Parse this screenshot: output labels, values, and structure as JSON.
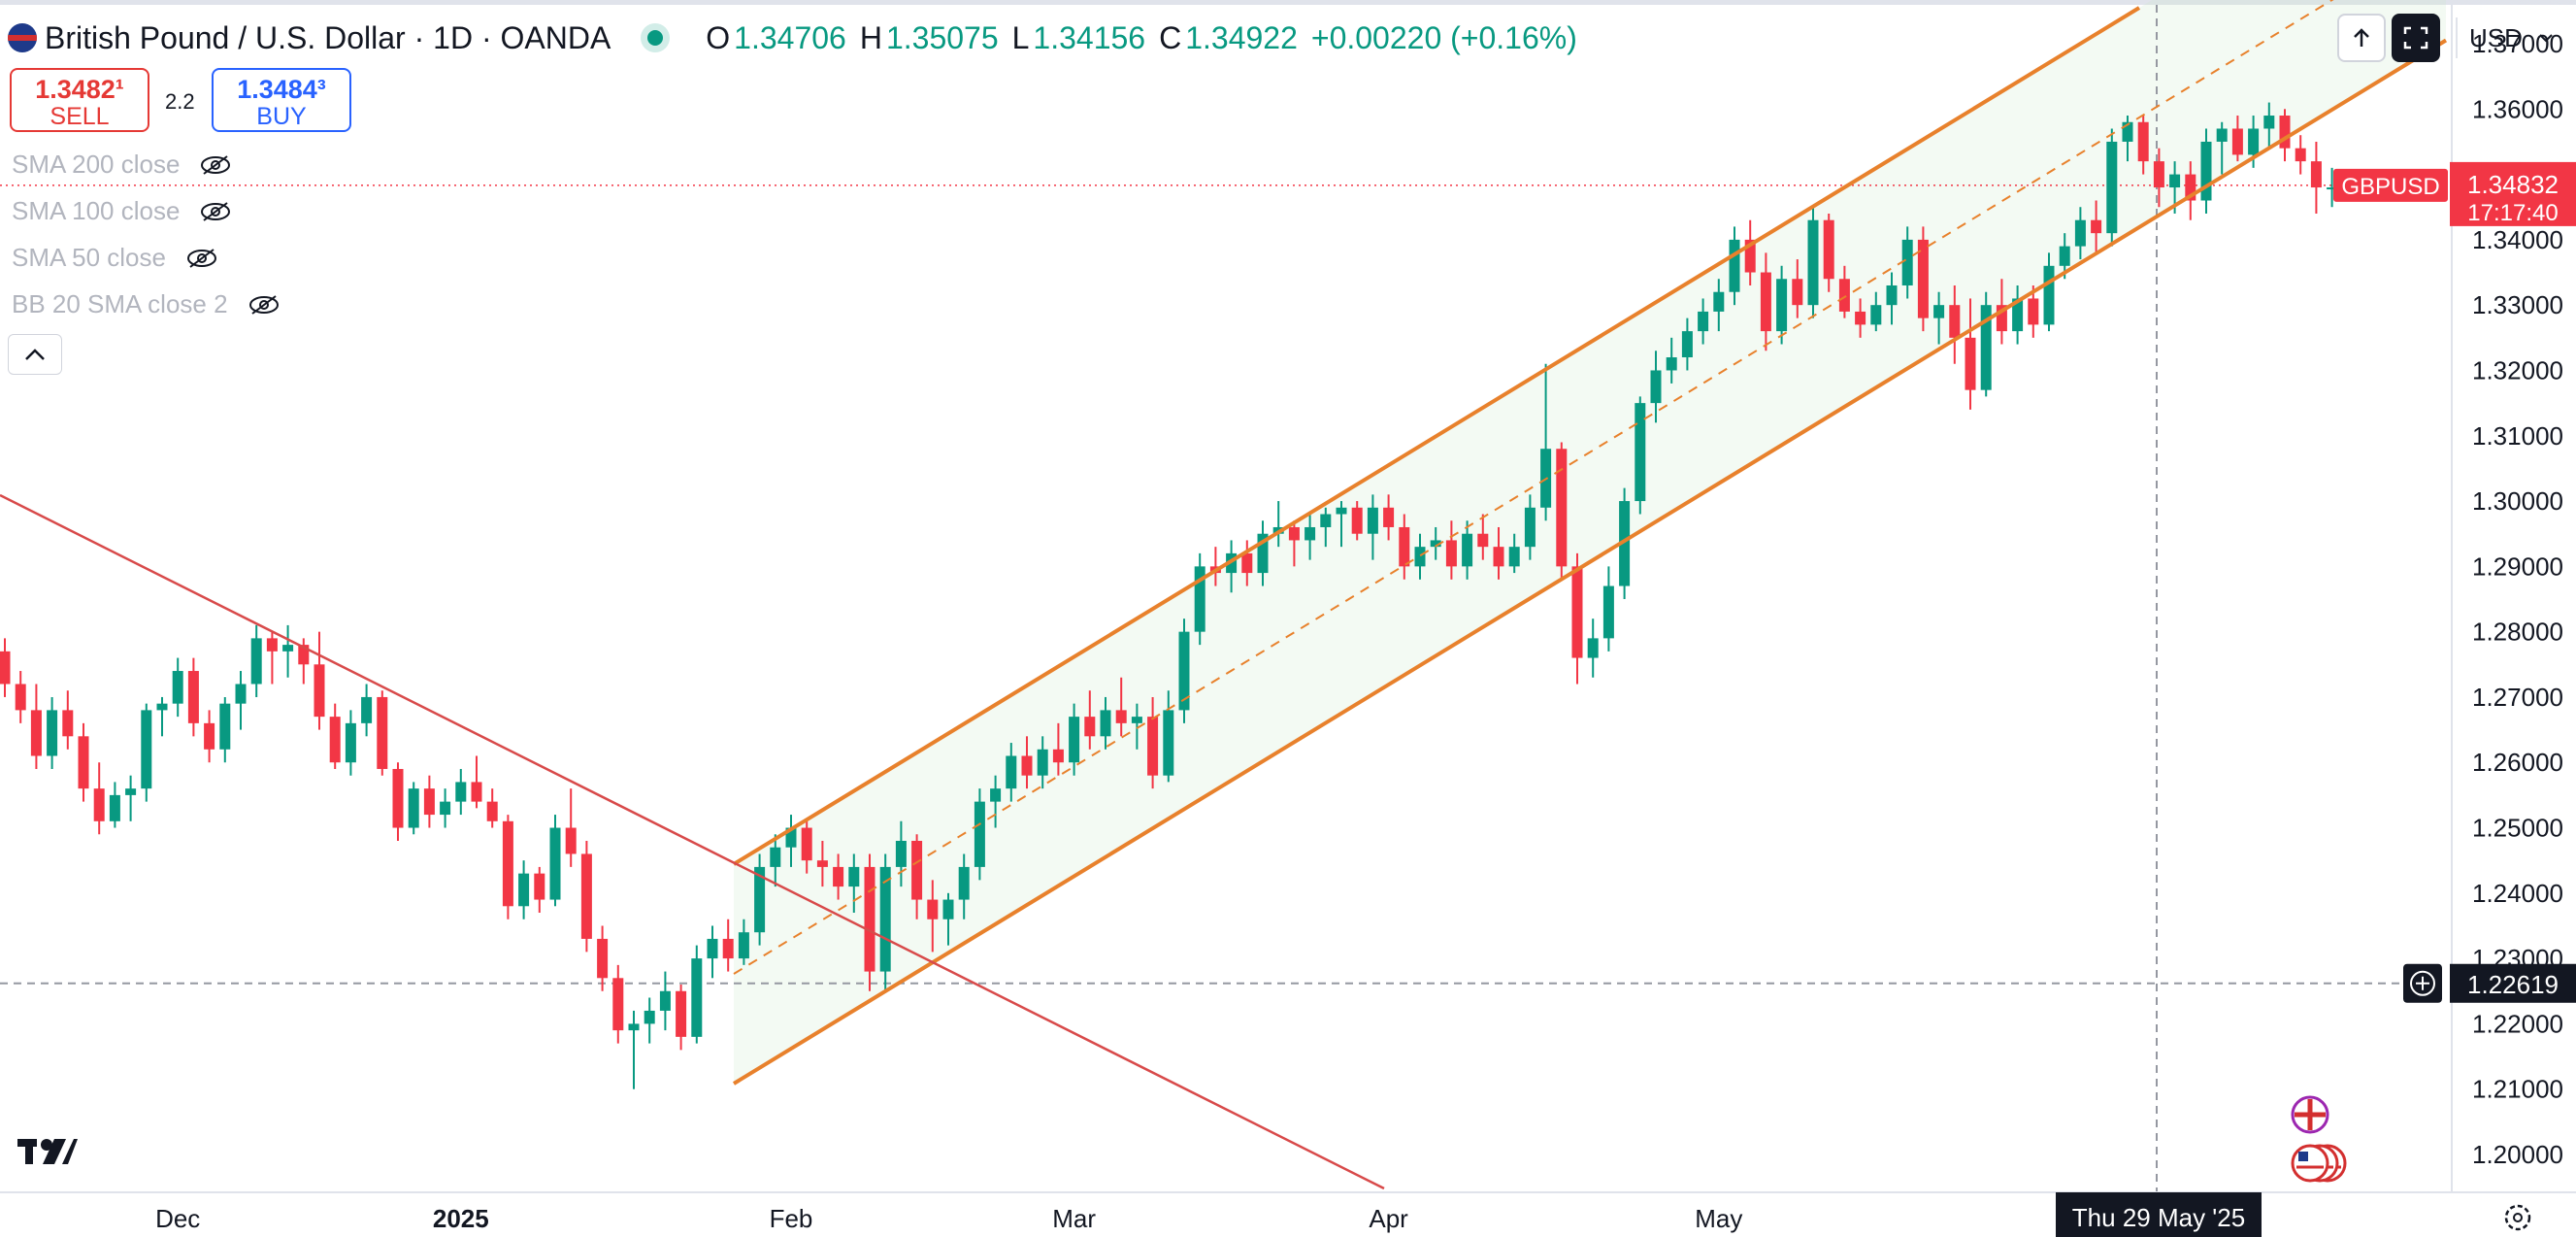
{
  "header": {
    "symbol": "British Pound / U.S. Dollar · 1D · OANDA",
    "o_label": "O",
    "o_value": "1.34706",
    "h_label": "H",
    "h_value": "1.35075",
    "l_label": "L",
    "l_value": "1.34156",
    "c_label": "C",
    "c_value": "1.34922",
    "change": "+0.00220 (+0.16%)"
  },
  "trade": {
    "sell_price": "1.3482¹",
    "sell_label": "SELL",
    "spread": "2.2",
    "buy_price": "1.3484³",
    "buy_label": "BUY"
  },
  "indicators": [
    "SMA 200 close",
    "SMA 100 close",
    "SMA 50 close",
    "BB 20 SMA close 2"
  ],
  "toolbar": {
    "currency": "USD",
    "collapse_icon": "chevron-up-icon"
  },
  "price_badge": {
    "symbol": "GBPUSD",
    "price": "1.34832",
    "countdown": "17:17:40"
  },
  "crosshair": {
    "price": "1.22619",
    "date": "Thu 29 May '25"
  },
  "colors": {
    "up": "#089981",
    "down": "#f23645",
    "channel": "#e8812c",
    "trend": "#d84a4a"
  },
  "chart_data": {
    "type": "candlestick",
    "title": "British Pound / U.S. Dollar · 1D · OANDA",
    "y_ticks": [
      "1.37000",
      "1.36000",
      "1.35000",
      "1.34000",
      "1.33000",
      "1.32000",
      "1.31000",
      "1.30000",
      "1.29000",
      "1.28000",
      "1.27000",
      "1.26000",
      "1.25000",
      "1.24000",
      "1.23000",
      "1.22000",
      "1.21000",
      "1.20000"
    ],
    "ylim": [
      1.19,
      1.375
    ],
    "x_labels": [
      {
        "label": "Dec",
        "i": 11
      },
      {
        "label": "2025",
        "i": 29
      },
      {
        "label": "Feb",
        "i": 50
      },
      {
        "label": "Mar",
        "i": 68
      },
      {
        "label": "Apr",
        "i": 88
      },
      {
        "label": "May",
        "i": 109
      }
    ],
    "ohlc": [
      [
        1.277,
        1.279,
        1.27,
        1.272
      ],
      [
        1.272,
        1.274,
        1.266,
        1.268
      ],
      [
        1.268,
        1.272,
        1.259,
        1.261
      ],
      [
        1.261,
        1.27,
        1.259,
        1.268
      ],
      [
        1.268,
        1.271,
        1.262,
        1.264
      ],
      [
        1.264,
        1.266,
        1.254,
        1.256
      ],
      [
        1.256,
        1.26,
        1.249,
        1.251
      ],
      [
        1.251,
        1.257,
        1.25,
        1.255
      ],
      [
        1.255,
        1.258,
        1.251,
        1.256
      ],
      [
        1.256,
        1.269,
        1.254,
        1.268
      ],
      [
        1.268,
        1.27,
        1.264,
        1.269
      ],
      [
        1.269,
        1.276,
        1.267,
        1.274
      ],
      [
        1.274,
        1.276,
        1.264,
        1.266
      ],
      [
        1.266,
        1.268,
        1.26,
        1.262
      ],
      [
        1.262,
        1.27,
        1.26,
        1.269
      ],
      [
        1.269,
        1.274,
        1.265,
        1.272
      ],
      [
        1.272,
        1.281,
        1.27,
        1.279
      ],
      [
        1.279,
        1.28,
        1.272,
        1.277
      ],
      [
        1.277,
        1.281,
        1.273,
        1.278
      ],
      [
        1.278,
        1.279,
        1.272,
        1.275
      ],
      [
        1.275,
        1.28,
        1.265,
        1.267
      ],
      [
        1.267,
        1.269,
        1.259,
        1.26
      ],
      [
        1.26,
        1.268,
        1.258,
        1.266
      ],
      [
        1.266,
        1.272,
        1.264,
        1.27
      ],
      [
        1.27,
        1.271,
        1.258,
        1.259
      ],
      [
        1.259,
        1.26,
        1.248,
        1.25
      ],
      [
        1.25,
        1.257,
        1.249,
        1.256
      ],
      [
        1.256,
        1.258,
        1.25,
        1.252
      ],
      [
        1.252,
        1.256,
        1.25,
        1.254
      ],
      [
        1.254,
        1.259,
        1.252,
        1.257
      ],
      [
        1.257,
        1.261,
        1.253,
        1.254
      ],
      [
        1.254,
        1.256,
        1.25,
        1.251
      ],
      [
        1.251,
        1.252,
        1.236,
        1.238
      ],
      [
        1.238,
        1.245,
        1.236,
        1.243
      ],
      [
        1.243,
        1.244,
        1.237,
        1.239
      ],
      [
        1.239,
        1.252,
        1.238,
        1.25
      ],
      [
        1.25,
        1.256,
        1.244,
        1.246
      ],
      [
        1.246,
        1.248,
        1.231,
        1.233
      ],
      [
        1.233,
        1.235,
        1.225,
        1.227
      ],
      [
        1.227,
        1.229,
        1.217,
        1.219
      ],
      [
        1.219,
        1.222,
        1.21,
        1.22
      ],
      [
        1.22,
        1.224,
        1.217,
        1.222
      ],
      [
        1.222,
        1.228,
        1.219,
        1.225
      ],
      [
        1.225,
        1.226,
        1.216,
        1.218
      ],
      [
        1.218,
        1.232,
        1.217,
        1.23
      ],
      [
        1.23,
        1.235,
        1.227,
        1.233
      ],
      [
        1.233,
        1.236,
        1.228,
        1.23
      ],
      [
        1.23,
        1.236,
        1.229,
        1.234
      ],
      [
        1.234,
        1.246,
        1.232,
        1.244
      ],
      [
        1.244,
        1.249,
        1.241,
        1.247
      ],
      [
        1.247,
        1.252,
        1.244,
        1.25
      ],
      [
        1.25,
        1.251,
        1.243,
        1.245
      ],
      [
        1.245,
        1.248,
        1.241,
        1.244
      ],
      [
        1.244,
        1.246,
        1.239,
        1.241
      ],
      [
        1.241,
        1.246,
        1.237,
        1.244
      ],
      [
        1.244,
        1.246,
        1.225,
        1.228
      ],
      [
        1.228,
        1.246,
        1.225,
        1.244
      ],
      [
        1.244,
        1.251,
        1.241,
        1.248
      ],
      [
        1.248,
        1.249,
        1.236,
        1.239
      ],
      [
        1.239,
        1.242,
        1.231,
        1.236
      ],
      [
        1.236,
        1.24,
        1.232,
        1.239
      ],
      [
        1.239,
        1.246,
        1.236,
        1.244
      ],
      [
        1.244,
        1.256,
        1.242,
        1.254
      ],
      [
        1.254,
        1.258,
        1.25,
        1.256
      ],
      [
        1.256,
        1.263,
        1.254,
        1.261
      ],
      [
        1.261,
        1.264,
        1.256,
        1.258
      ],
      [
        1.258,
        1.264,
        1.256,
        1.262
      ],
      [
        1.262,
        1.266,
        1.258,
        1.26
      ],
      [
        1.26,
        1.269,
        1.258,
        1.267
      ],
      [
        1.267,
        1.271,
        1.262,
        1.264
      ],
      [
        1.264,
        1.27,
        1.262,
        1.268
      ],
      [
        1.268,
        1.273,
        1.264,
        1.266
      ],
      [
        1.266,
        1.269,
        1.262,
        1.267
      ],
      [
        1.267,
        1.27,
        1.256,
        1.258
      ],
      [
        1.258,
        1.271,
        1.257,
        1.268
      ],
      [
        1.268,
        1.282,
        1.266,
        1.28
      ],
      [
        1.28,
        1.292,
        1.278,
        1.29
      ],
      [
        1.29,
        1.293,
        1.287,
        1.289
      ],
      [
        1.289,
        1.294,
        1.286,
        1.292
      ],
      [
        1.292,
        1.294,
        1.287,
        1.289
      ],
      [
        1.289,
        1.297,
        1.287,
        1.295
      ],
      [
        1.295,
        1.3,
        1.293,
        1.296
      ],
      [
        1.296,
        1.297,
        1.29,
        1.294
      ],
      [
        1.294,
        1.298,
        1.291,
        1.296
      ],
      [
        1.296,
        1.299,
        1.293,
        1.298
      ],
      [
        1.298,
        1.3,
        1.293,
        1.299
      ],
      [
        1.299,
        1.3,
        1.294,
        1.295
      ],
      [
        1.295,
        1.301,
        1.291,
        1.299
      ],
      [
        1.299,
        1.301,
        1.294,
        1.296
      ],
      [
        1.296,
        1.298,
        1.288,
        1.29
      ],
      [
        1.29,
        1.295,
        1.288,
        1.293
      ],
      [
        1.293,
        1.296,
        1.291,
        1.294
      ],
      [
        1.294,
        1.297,
        1.288,
        1.29
      ],
      [
        1.29,
        1.297,
        1.288,
        1.295
      ],
      [
        1.295,
        1.298,
        1.291,
        1.293
      ],
      [
        1.293,
        1.296,
        1.288,
        1.29
      ],
      [
        1.29,
        1.295,
        1.289,
        1.293
      ],
      [
        1.293,
        1.301,
        1.291,
        1.299
      ],
      [
        1.299,
        1.321,
        1.297,
        1.308
      ],
      [
        1.308,
        1.309,
        1.288,
        1.29
      ],
      [
        1.29,
        1.292,
        1.272,
        1.276
      ],
      [
        1.276,
        1.282,
        1.273,
        1.279
      ],
      [
        1.279,
        1.29,
        1.277,
        1.287
      ],
      [
        1.287,
        1.302,
        1.285,
        1.3
      ],
      [
        1.3,
        1.316,
        1.298,
        1.315
      ],
      [
        1.315,
        1.323,
        1.312,
        1.32
      ],
      [
        1.32,
        1.325,
        1.318,
        1.322
      ],
      [
        1.322,
        1.328,
        1.32,
        1.326
      ],
      [
        1.326,
        1.331,
        1.324,
        1.329
      ],
      [
        1.329,
        1.334,
        1.326,
        1.332
      ],
      [
        1.332,
        1.342,
        1.33,
        1.34
      ],
      [
        1.34,
        1.343,
        1.333,
        1.335
      ],
      [
        1.335,
        1.338,
        1.323,
        1.326
      ],
      [
        1.326,
        1.336,
        1.324,
        1.334
      ],
      [
        1.334,
        1.337,
        1.328,
        1.33
      ],
      [
        1.33,
        1.345,
        1.328,
        1.343
      ],
      [
        1.343,
        1.344,
        1.332,
        1.334
      ],
      [
        1.334,
        1.336,
        1.328,
        1.329
      ],
      [
        1.329,
        1.331,
        1.325,
        1.327
      ],
      [
        1.327,
        1.332,
        1.326,
        1.33
      ],
      [
        1.33,
        1.335,
        1.327,
        1.333
      ],
      [
        1.333,
        1.342,
        1.331,
        1.34
      ],
      [
        1.34,
        1.342,
        1.326,
        1.328
      ],
      [
        1.328,
        1.332,
        1.324,
        1.33
      ],
      [
        1.33,
        1.333,
        1.321,
        1.325
      ],
      [
        1.325,
        1.331,
        1.314,
        1.317
      ],
      [
        1.317,
        1.332,
        1.316,
        1.33
      ],
      [
        1.33,
        1.334,
        1.324,
        1.326
      ],
      [
        1.326,
        1.333,
        1.324,
        1.331
      ],
      [
        1.331,
        1.333,
        1.325,
        1.327
      ],
      [
        1.327,
        1.338,
        1.326,
        1.336
      ],
      [
        1.336,
        1.341,
        1.334,
        1.339
      ],
      [
        1.339,
        1.345,
        1.337,
        1.343
      ],
      [
        1.343,
        1.346,
        1.338,
        1.341
      ],
      [
        1.341,
        1.357,
        1.339,
        1.355
      ],
      [
        1.355,
        1.359,
        1.352,
        1.358
      ],
      [
        1.358,
        1.359,
        1.35,
        1.352
      ],
      [
        1.352,
        1.354,
        1.345,
        1.348
      ],
      [
        1.348,
        1.352,
        1.344,
        1.35
      ],
      [
        1.35,
        1.352,
        1.343,
        1.346
      ],
      [
        1.346,
        1.357,
        1.344,
        1.355
      ],
      [
        1.355,
        1.358,
        1.35,
        1.357
      ],
      [
        1.357,
        1.359,
        1.352,
        1.353
      ],
      [
        1.353,
        1.359,
        1.351,
        1.357
      ],
      [
        1.357,
        1.361,
        1.354,
        1.359
      ],
      [
        1.359,
        1.36,
        1.352,
        1.354
      ],
      [
        1.354,
        1.356,
        1.35,
        1.352
      ],
      [
        1.352,
        1.355,
        1.344,
        1.348
      ],
      [
        1.348,
        1.351,
        1.345,
        1.348
      ]
    ]
  }
}
